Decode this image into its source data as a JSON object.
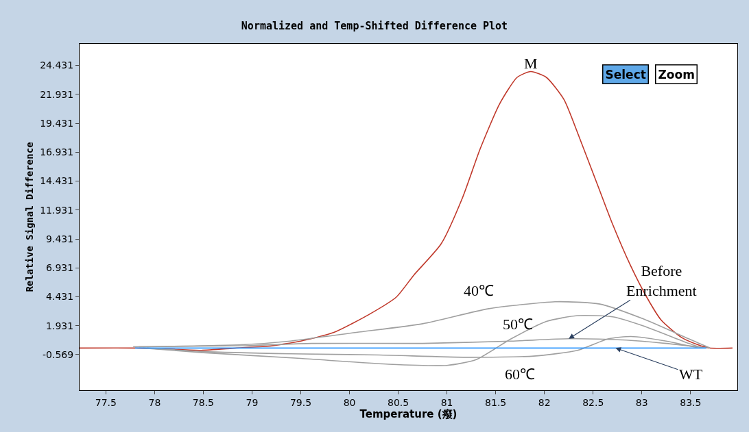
{
  "chart_data": {
    "type": "line",
    "title": "Normalized and Temp-Shifted Difference Plot",
    "xlabel": "Temperature (癈)",
    "ylabel": "Relative Signal Difference",
    "annotations": [
      "Select",
      "Zoom"
    ],
    "xlim": [
      77.23,
      83.98
    ],
    "xticks": [
      77.5,
      78,
      78.5,
      79,
      79.5,
      80,
      80.5,
      81,
      81.5,
      82,
      82.5,
      83,
      83.5
    ],
    "ylim": [
      -3.65,
      26.3
    ],
    "yticks": [
      -0.569,
      1.931,
      4.431,
      6.931,
      9.431,
      11.931,
      14.431,
      16.931,
      19.431,
      21.931,
      24.431
    ],
    "grid": false,
    "legend": false,
    "marker": "none",
    "line_style": "solid",
    "series": [
      {
        "name": "M",
        "color": "#c0392b",
        "x": [
          77.23,
          77.8,
          78.16,
          78.48,
          78.84,
          79.16,
          79.5,
          79.84,
          80.2,
          80.48,
          80.66,
          80.94,
          81.16,
          81.34,
          81.54,
          81.72,
          81.86,
          82.02,
          82.2,
          82.35,
          82.55,
          82.7,
          82.88,
          83.05,
          83.2,
          83.41,
          83.57,
          83.69,
          83.93
        ],
        "values": [
          0,
          0,
          -0.1,
          -0.2,
          0,
          0.15,
          0.6,
          1.35,
          2.9,
          4.4,
          6.3,
          9.0,
          13.0,
          17.2,
          21.1,
          23.4,
          23.9,
          23.4,
          21.5,
          18.4,
          14.0,
          10.7,
          7.2,
          4.4,
          2.4,
          0.9,
          0.3,
          0,
          0
        ]
      },
      {
        "name": "40℃",
        "color": "#a0a0a0",
        "x": [
          77.84,
          78.93,
          79.39,
          80.07,
          80.75,
          81.43,
          82.11,
          82.57,
          83.02,
          83.48,
          83.7
        ],
        "values": [
          0.1,
          0.3,
          0.6,
          1.35,
          2.1,
          3.4,
          4.0,
          3.8,
          2.5,
          0.8,
          0
        ]
      },
      {
        "name": "50℃",
        "color": "#a0a0a0",
        "x": [
          77.88,
          78.5,
          79.5,
          80.4,
          81.0,
          81.3,
          81.66,
          82.02,
          82.34,
          82.7,
          83.02,
          83.48,
          83.62
        ],
        "values": [
          0,
          -0.4,
          -0.9,
          -1.4,
          -1.5,
          -1.0,
          0.8,
          2.3,
          2.8,
          2.7,
          1.9,
          0.4,
          0
        ]
      },
      {
        "name": "Before Enrichment",
        "color": "#a0a0a0",
        "x": [
          77.78,
          78.93,
          79.61,
          80.75,
          81.66,
          82.25,
          82.8,
          83.25,
          83.68
        ],
        "values": [
          0.1,
          0.2,
          0.4,
          0.4,
          0.6,
          0.8,
          0.7,
          0.4,
          0
        ]
      },
      {
        "name": "60℃",
        "color": "#a0a0a0",
        "x": [
          77.92,
          78.48,
          79.39,
          80.3,
          81.2,
          81.89,
          82.34,
          82.66,
          82.89,
          83.25,
          83.58
        ],
        "values": [
          0,
          -0.3,
          -0.5,
          -0.6,
          -0.8,
          -0.7,
          -0.2,
          0.8,
          1.0,
          0.6,
          0
        ]
      },
      {
        "name": "WT",
        "color": "#3399ff",
        "x": [
          77.8,
          83.66
        ],
        "values": [
          0,
          0
        ]
      }
    ]
  }
}
